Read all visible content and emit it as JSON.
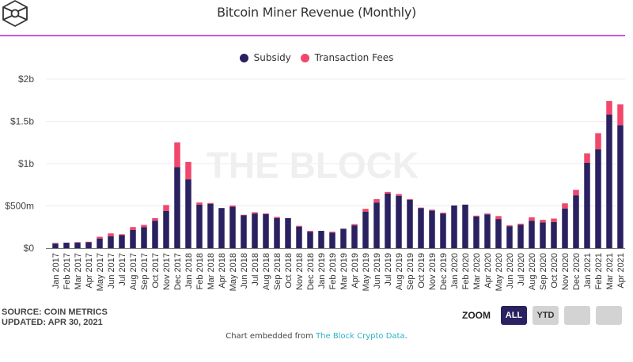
{
  "header": {
    "logo": "the-block-cube-logo",
    "title": "Bitcoin Miner Revenue (Monthly)"
  },
  "watermark": "THE BLOCK",
  "footer": {
    "source": "SOURCE: COIN METRICS",
    "updated": "UPDATED: APR 30, 2021",
    "zoom_label": "ZOOM",
    "zoom_buttons": [
      {
        "label": "ALL",
        "active": true
      },
      {
        "label": "YTD",
        "active": false
      },
      {
        "label": "",
        "active": false
      },
      {
        "label": "",
        "active": false
      }
    ],
    "embed_text": "Chart embedded from ",
    "embed_link": "The Block Crypto Data",
    "embed_suffix": "."
  },
  "colors": {
    "subsidy": "#2a2160",
    "fees": "#f0476b",
    "accent_rule": "#c558e3",
    "link": "#2bb5c4"
  },
  "chart_data": {
    "type": "bar",
    "stacked": true,
    "title": "Bitcoin Miner Revenue (Monthly)",
    "xlabel": "",
    "ylabel": "",
    "ylim": [
      0,
      2000
    ],
    "units": "USD millions",
    "yticks": [
      {
        "value": 0,
        "label": "$0"
      },
      {
        "value": 500,
        "label": "$500m"
      },
      {
        "value": 1000,
        "label": "$1b"
      },
      {
        "value": 1500,
        "label": "$1.5b"
      },
      {
        "value": 2000,
        "label": "$2b"
      }
    ],
    "grid": true,
    "legend_position": "top-center",
    "categories": [
      "Jan 2017",
      "Feb 2017",
      "Mar 2017",
      "Apr 2017",
      "May 2017",
      "Jun 2017",
      "Jul 2017",
      "Aug 2017",
      "Sep 2017",
      "Oct 2017",
      "Nov 2017",
      "Dec 2017",
      "Jan 2018",
      "Feb 2018",
      "Mar 2018",
      "Apr 2018",
      "May 2018",
      "Jun 2018",
      "Jul 2018",
      "Aug 2018",
      "Sep 2018",
      "Oct 2018",
      "Nov 2018",
      "Dec 2018",
      "Jan 2019",
      "Feb 2019",
      "Mar 2019",
      "Apr 2019",
      "May 2019",
      "Jun 2019",
      "Jul 2019",
      "Aug 2019",
      "Sep 2019",
      "Oct 2019",
      "Nov 2019",
      "Dec 2019",
      "Jan 2020",
      "Feb 2020",
      "Mar 2020",
      "Apr 2020",
      "May 2020",
      "Jun 2020",
      "Jul 2020",
      "Aug 2020",
      "Sep 2020",
      "Oct 2020",
      "Nov 2020",
      "Dec 2020",
      "Jan 2021",
      "Feb 2021",
      "Mar 2021",
      "Apr 2021"
    ],
    "series": [
      {
        "name": "Subsidy",
        "color": "#2a2160",
        "values": [
          55,
          65,
          65,
          75,
          115,
          140,
          155,
          215,
          250,
          325,
          440,
          960,
          815,
          515,
          525,
          475,
          490,
          390,
          410,
          405,
          355,
          355,
          255,
          195,
          205,
          185,
          230,
          270,
          430,
          540,
          645,
          620,
          570,
          475,
          445,
          410,
          505,
          515,
          375,
          400,
          345,
          260,
          275,
          325,
          305,
          310,
          470,
          625,
          1010,
          1170,
          1580,
          1455
        ]
      },
      {
        "name": "Transaction Fees",
        "color": "#f0476b",
        "values": [
          7,
          0,
          7,
          1,
          20,
          35,
          10,
          35,
          25,
          30,
          70,
          290,
          205,
          25,
          10,
          0,
          15,
          5,
          15,
          5,
          15,
          0,
          10,
          10,
          0,
          10,
          0,
          15,
          35,
          40,
          20,
          20,
          10,
          5,
          10,
          10,
          0,
          0,
          10,
          10,
          35,
          10,
          15,
          40,
          30,
          40,
          60,
          65,
          110,
          190,
          160,
          245
        ]
      }
    ]
  }
}
